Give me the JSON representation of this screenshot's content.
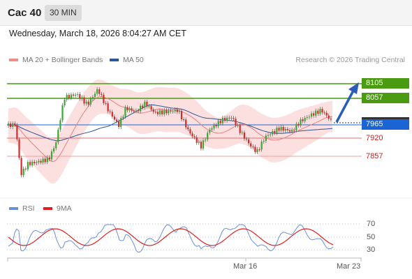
{
  "header": {
    "symbol": "Cac 40",
    "interval": "30 MIN",
    "timestamp": "Wednesday, March 18, 2026 8:04:27 AM CET"
  },
  "legend": {
    "main": [
      {
        "label": "MA 20 + Bollinger Bands",
        "color": "#f28b82"
      },
      {
        "label": "MA 50",
        "color": "#2b5597"
      }
    ],
    "copyright": "Research © 2026 Trading Central",
    "rsi": [
      {
        "label": "RSI",
        "color": "#6a8fe0"
      },
      {
        "label": "9MA",
        "color": "#e02020"
      }
    ]
  },
  "levels": {
    "resistance_1": "8105",
    "resistance_2": "8057",
    "pivot": "7965",
    "support_1": "7920",
    "support_2": "7857"
  },
  "rsi_levels": [
    "70",
    "50",
    "30"
  ],
  "x_labels": [
    "Mar 16",
    "Mar 23"
  ],
  "colors": {
    "up": "#3aa833",
    "down": "#d42a2a",
    "resistance": "#4a9a12",
    "pivot": "#1a64d6",
    "support": "#e06a6a"
  }
}
